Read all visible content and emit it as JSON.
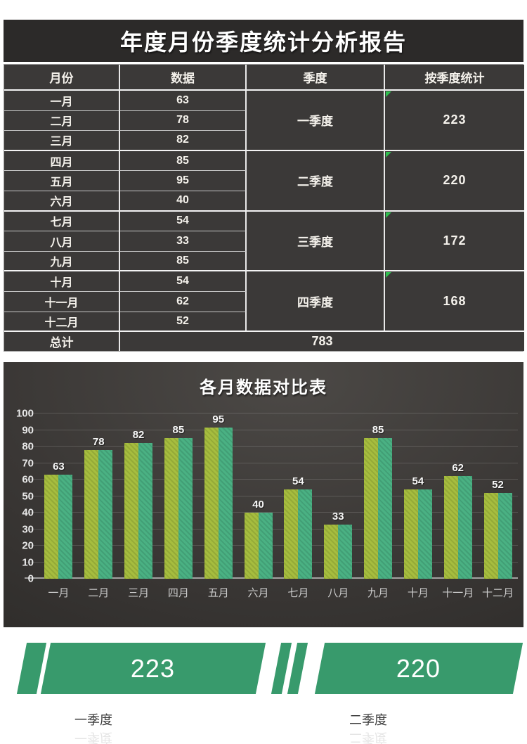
{
  "report": {
    "title": "年度月份季度统计分析报告"
  },
  "table": {
    "headers": [
      "月份",
      "数据",
      "季度",
      "按季度统计"
    ],
    "rows": [
      {
        "month": "一月",
        "value": "63"
      },
      {
        "month": "二月",
        "value": "78"
      },
      {
        "month": "三月",
        "value": "82"
      },
      {
        "month": "四月",
        "value": "85"
      },
      {
        "month": "五月",
        "value": "95"
      },
      {
        "month": "六月",
        "value": "40"
      },
      {
        "month": "七月",
        "value": "54"
      },
      {
        "month": "八月",
        "value": "33"
      },
      {
        "month": "九月",
        "value": "85"
      },
      {
        "month": "十月",
        "value": "54"
      },
      {
        "month": "十一月",
        "value": "62"
      },
      {
        "month": "十二月",
        "value": "52"
      }
    ],
    "quarters": [
      {
        "name": "一季度",
        "total": "223"
      },
      {
        "name": "二季度",
        "total": "220"
      },
      {
        "name": "三季度",
        "total": "172"
      },
      {
        "name": "四季度",
        "total": "168"
      }
    ],
    "footer": {
      "label": "总计",
      "value": "783"
    }
  },
  "chart_data": {
    "type": "bar",
    "title": "各月数据对比表",
    "categories": [
      "一月",
      "二月",
      "三月",
      "四月",
      "五月",
      "六月",
      "七月",
      "八月",
      "九月",
      "十月",
      "十一月",
      "十二月"
    ],
    "values": [
      63,
      78,
      82,
      85,
      95,
      40,
      54,
      33,
      85,
      54,
      62,
      52
    ],
    "ylim": [
      0,
      100
    ],
    "ytick_step": 10,
    "grid": true,
    "legend": "none",
    "bar_style": "two-tone-striped",
    "bar_colors": [
      "#a6bd3e",
      "#4ab183"
    ]
  },
  "summary": {
    "banners": [
      {
        "value": "223",
        "label": "一季度"
      },
      {
        "value": "220",
        "label": "二季度"
      }
    ]
  },
  "colors": {
    "panel_dark": "#3b3938",
    "title_bar": "#2c2a29",
    "banner_green": "#389a6c",
    "bar_left": "#a6bd3e",
    "bar_right": "#4ab183",
    "formula_marker_green": "#2ebf4f"
  }
}
